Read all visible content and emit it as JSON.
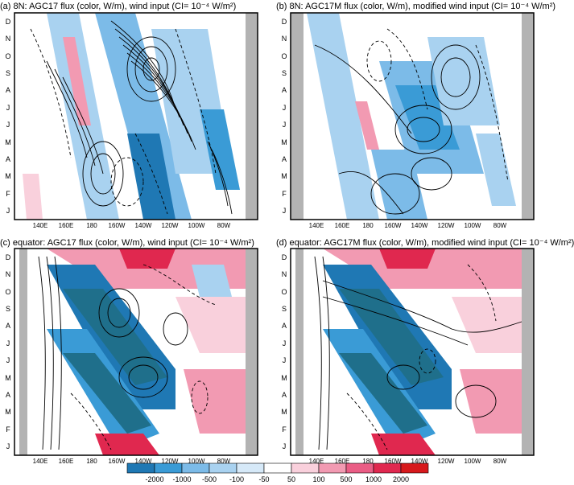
{
  "panels": [
    {
      "id": "a",
      "title": "(a) 8N: AGC17 flux (color, W/m), wind input (CI= 10⁻⁴ W/m²)"
    },
    {
      "id": "b",
      "title": "(b) 8N: AGC17M flux (color, W/m), modified wind input (CI= 10⁻⁴ W/m²)"
    },
    {
      "id": "c",
      "title": "(c) equator: AGC17 flux (color, W/m), wind input (CI= 10⁻⁴ W/m²)"
    },
    {
      "id": "d",
      "title": "(d) equator: AGC17M flux (color, W/m), modified wind input (CI= 10⁻⁴ W/m²)"
    }
  ],
  "months": [
    "D",
    "N",
    "O",
    "S",
    "A",
    "J",
    "J",
    "M",
    "A",
    "M",
    "F",
    "J"
  ],
  "lon_ticks": [
    "140E",
    "160E",
    "180",
    "160W",
    "140W",
    "120W",
    "100W",
    "80W"
  ],
  "colorbar": {
    "labels": [
      "-2000",
      "-1000",
      "-500",
      "-100",
      "-50",
      "50",
      "100",
      "500",
      "1000",
      "2000"
    ],
    "colors": [
      "#1f78b4",
      "#3a9bd6",
      "#7cbbe8",
      "#a9d2f0",
      "#d6e9f8",
      "#ffffff",
      "#f9d0dc",
      "#f29ab2",
      "#ea5d85",
      "#e0284f",
      "#d7191c"
    ]
  },
  "chart_data": [
    {
      "type": "heatmap",
      "panel": "a",
      "x": "longitude (140E to 80W)",
      "y": "month (J to D)",
      "contours": "wind input, CI=1e-4 W/m2",
      "colors": "flux W/m"
    },
    {
      "type": "heatmap",
      "panel": "b",
      "x": "longitude (140E to 80W)",
      "y": "month (J to D)",
      "contours": "modified wind input, CI=1e-4 W/m2",
      "colors": "flux W/m"
    },
    {
      "type": "heatmap",
      "panel": "c",
      "x": "longitude (140E to 80W)",
      "y": "month (J to D)",
      "contours": "wind input, CI=1e-4 W/m2",
      "colors": "flux W/m"
    },
    {
      "type": "heatmap",
      "panel": "d",
      "x": "longitude (140E to 80W)",
      "y": "month (J to D)",
      "contours": "modified wind input, CI=1e-4 W/m2",
      "colors": "flux W/m"
    }
  ]
}
